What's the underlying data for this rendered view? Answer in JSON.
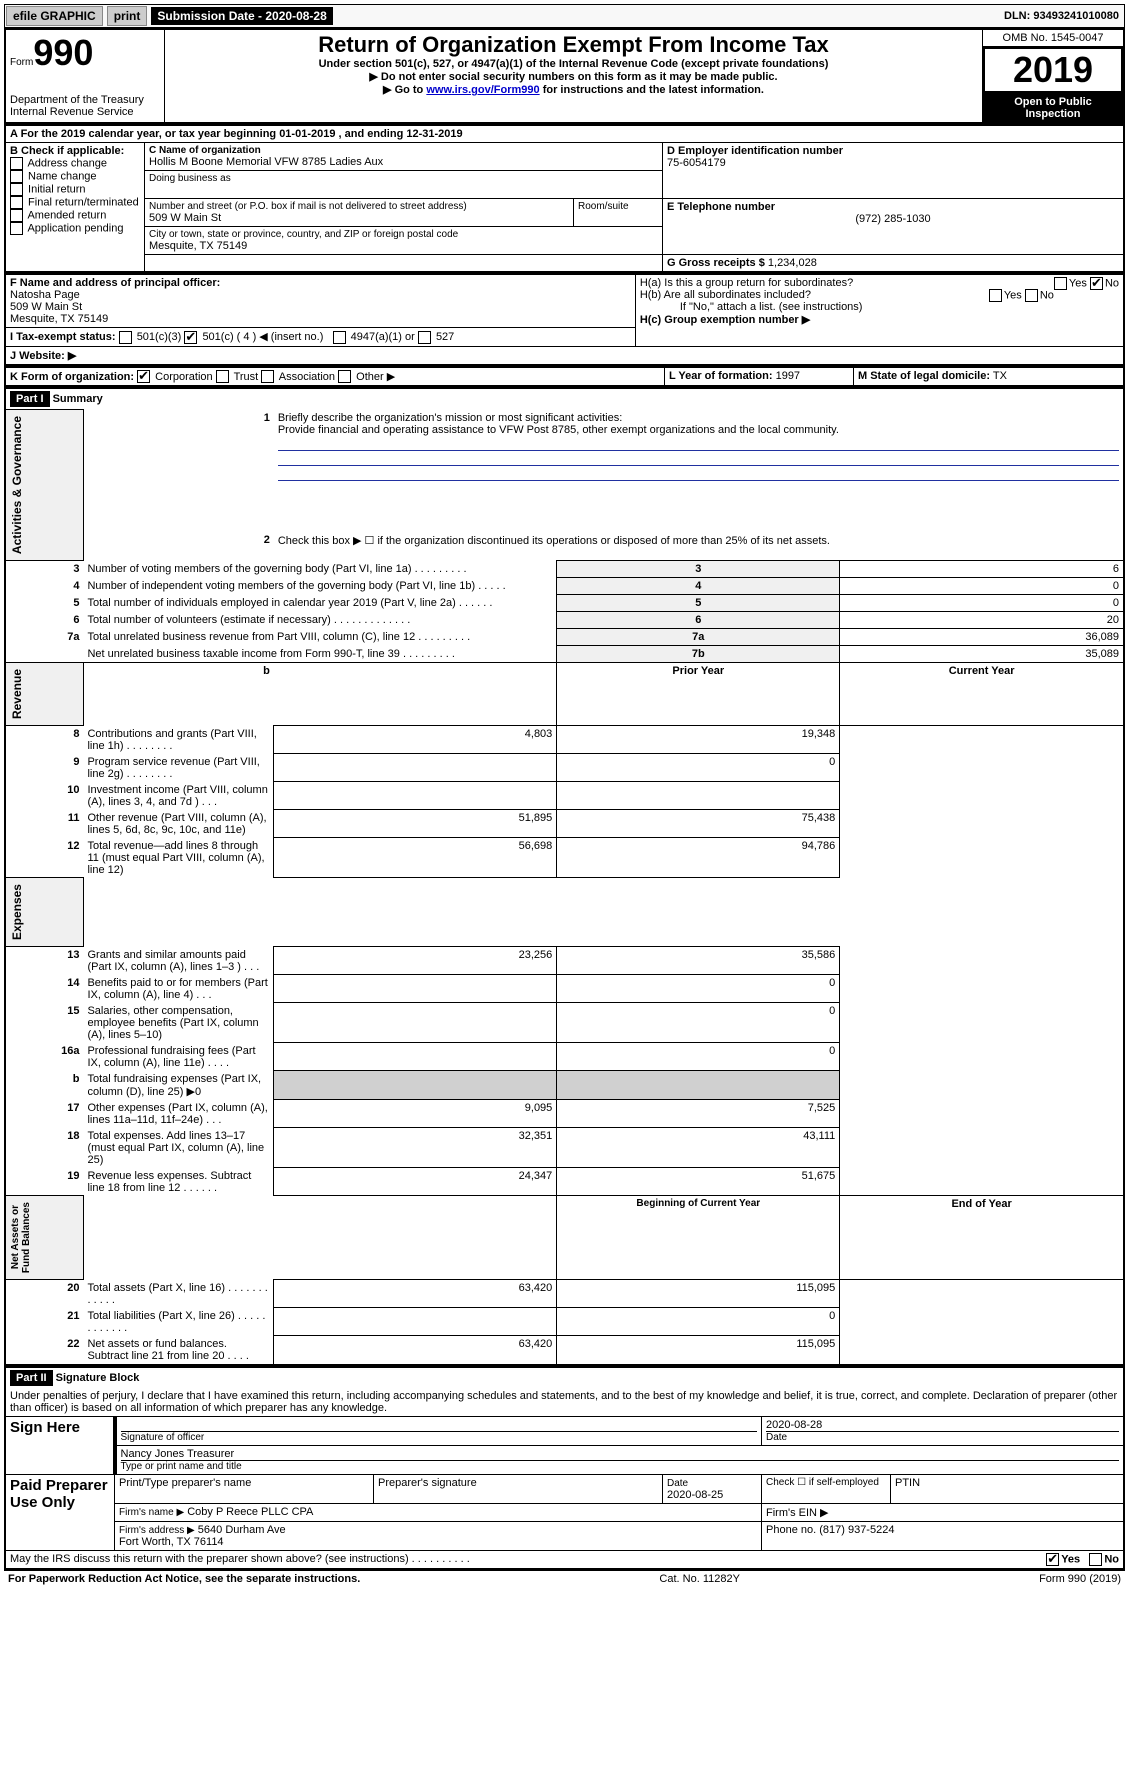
{
  "topbar": {
    "efile": "efile GRAPHIC",
    "print": "print",
    "submission_label": "Submission Date - 2020-08-28",
    "dln": "DLN: 93493241010080"
  },
  "header": {
    "form_prefix": "Form",
    "form_number": "990",
    "title": "Return of Organization Exempt From Income Tax",
    "subtitle1": "Under section 501(c), 527, or 4947(a)(1) of the Internal Revenue Code (except private foundations)",
    "subtitle2": "▶ Do not enter social security numbers on this form as it may be made public.",
    "subtitle3_a": "▶ Go to ",
    "subtitle3_link": "www.irs.gov/Form990",
    "subtitle3_b": " for instructions and the latest information.",
    "dept": "Department of the Treasury\nInternal Revenue Service",
    "omb": "OMB No. 1545-0047",
    "year": "2019",
    "open": "Open to Public Inspection"
  },
  "A": {
    "line": "A For the 2019 calendar year, or tax year beginning 01-01-2019    , and ending 12-31-2019"
  },
  "B": {
    "label": "B Check if applicable:",
    "opts": [
      "Address change",
      "Name change",
      "Initial return",
      "Final return/terminated",
      "Amended return",
      "Application pending"
    ]
  },
  "C": {
    "name_label": "C Name of organization",
    "name": "Hollis M Boone Memorial VFW 8785 Ladies Aux",
    "dba_label": "Doing business as",
    "addr_label": "Number and street (or P.O. box if mail is not delivered to street address)",
    "room_label": "Room/suite",
    "addr": "509 W Main St",
    "city_label": "City or town, state or province, country, and ZIP or foreign postal code",
    "city": "Mesquite, TX  75149"
  },
  "D": {
    "label": "D Employer identification number",
    "val": "75-6054179"
  },
  "E": {
    "label": "E Telephone number",
    "val": "(972) 285-1030"
  },
  "G": {
    "label": "G Gross receipts $",
    "val": "1,234,028"
  },
  "F": {
    "label": "F  Name and address of principal officer:",
    "name": "Natosha Page",
    "addr": "509 W Main St",
    "city": "Mesquite, TX  75149"
  },
  "H": {
    "a": "H(a)  Is this a group return for subordinates?",
    "b": "H(b)  Are all subordinates included?",
    "note": "If \"No,\" attach a list. (see instructions)",
    "c": "H(c)  Group exemption number ▶",
    "yes": "Yes",
    "no": "No"
  },
  "I": {
    "label": "I    Tax-exempt status:",
    "c4": "501(c) ( 4 ) ◀ (insert no.)",
    "c3": "501(c)(3)",
    "a1": "4947(a)(1) or",
    "527": "527"
  },
  "J": {
    "label": "J    Website: ▶"
  },
  "K": {
    "label": "K Form of organization:",
    "corp": "Corporation",
    "trust": "Trust",
    "assoc": "Association",
    "other": "Other ▶"
  },
  "L": {
    "label": "L Year of formation:",
    "val": "1997"
  },
  "M": {
    "label": "M State of legal domicile:",
    "val": "TX"
  },
  "partI": {
    "header": "Part I",
    "title": "Summary"
  },
  "summary": {
    "q1": "Briefly describe the organization's mission or most significant activities:",
    "mission": "Provide financial and operating assistance to VFW Post 8785, other exempt organizations and the local community.",
    "q2": "Check this box ▶ ☐  if the organization discontinued its operations or disposed of more than 25% of its net assets.",
    "lines": [
      {
        "n": "3",
        "d": "Number of voting members of the governing body (Part VI, line 1a)   .    .    .    .    .    .    .    .    .",
        "box": "3",
        "val": "6"
      },
      {
        "n": "4",
        "d": "Number of independent voting members of the governing body (Part VI, line 1b)   .    .    .    .    .",
        "box": "4",
        "val": "0"
      },
      {
        "n": "5",
        "d": "Total number of individuals employed in calendar year 2019 (Part V, line 2a)   .    .    .    .    .    .",
        "box": "5",
        "val": "0"
      },
      {
        "n": "6",
        "d": "Total number of volunteers (estimate if necessary)   .    .    .    .    .    .    .    .    .    .    .    .    .",
        "box": "6",
        "val": "20"
      },
      {
        "n": "7a",
        "d": "Total unrelated business revenue from Part VIII, column (C), line 12   .    .    .    .    .    .    .    .    .",
        "box": "7a",
        "val": "36,089"
      },
      {
        "n": "",
        "d": "Net unrelated business taxable income from Form 990-T, line 39   .    .    .    .    .    .    .    .    .",
        "box": "7b",
        "val": "35,089"
      }
    ],
    "headers": {
      "prior": "Prior Year",
      "current": "Current Year"
    },
    "revenue": [
      {
        "n": "8",
        "d": "Contributions and grants (Part VIII, line 1h)   .    .    .    .    .    .    .    .",
        "p": "4,803",
        "c": "19,348"
      },
      {
        "n": "9",
        "d": "Program service revenue (Part VIII, line 2g)   .    .    .    .    .    .    .    .",
        "p": "",
        "c": "0"
      },
      {
        "n": "10",
        "d": "Investment income (Part VIII, column (A), lines 3, 4, and 7d )   .    .    .",
        "p": "",
        "c": ""
      },
      {
        "n": "11",
        "d": "Other revenue (Part VIII, column (A), lines 5, 6d, 8c, 9c, 10c, and 11e)",
        "p": "51,895",
        "c": "75,438"
      },
      {
        "n": "12",
        "d": "Total revenue—add lines 8 through 11 (must equal Part VIII, column (A), line 12)",
        "p": "56,698",
        "c": "94,786"
      }
    ],
    "expenses": [
      {
        "n": "13",
        "d": "Grants and similar amounts paid (Part IX, column (A), lines 1–3 )   .    .    .",
        "p": "23,256",
        "c": "35,586"
      },
      {
        "n": "14",
        "d": "Benefits paid to or for members (Part IX, column (A), line 4)   .    .    .",
        "p": "",
        "c": "0"
      },
      {
        "n": "15",
        "d": "Salaries, other compensation, employee benefits (Part IX, column (A), lines 5–10)",
        "p": "",
        "c": "0"
      },
      {
        "n": "16a",
        "d": "Professional fundraising fees (Part IX, column (A), line 11e)   .    .    .    .",
        "p": "",
        "c": "0"
      },
      {
        "n": "b",
        "d": "Total fundraising expenses (Part IX, column (D), line 25) ▶0",
        "p": "shaded",
        "c": "shaded"
      },
      {
        "n": "17",
        "d": "Other expenses (Part IX, column (A), lines 11a–11d, 11f–24e)   .    .    .",
        "p": "9,095",
        "c": "7,525"
      },
      {
        "n": "18",
        "d": "Total expenses. Add lines 13–17 (must equal Part IX, column (A), line 25)",
        "p": "32,351",
        "c": "43,111"
      },
      {
        "n": "19",
        "d": "Revenue less expenses. Subtract line 18 from line 12   .    .    .    .    .    .",
        "p": "24,347",
        "c": "51,675"
      }
    ],
    "netheaders": {
      "begin": "Beginning of Current Year",
      "end": "End of Year"
    },
    "net": [
      {
        "n": "20",
        "d": "Total assets (Part X, line 16)   .    .    .    .    .    .    .    .    .    .    .    .",
        "p": "63,420",
        "c": "115,095"
      },
      {
        "n": "21",
        "d": "Total liabilities (Part X, line 26)   .    .    .    .    .    .    .    .    .    .    .    .",
        "p": "",
        "c": "0"
      },
      {
        "n": "22",
        "d": "Net assets or fund balances. Subtract line 21 from line 20   .    .    .    .",
        "p": "63,420",
        "c": "115,095"
      }
    ]
  },
  "vlabels": {
    "ag": "Activities & Governance",
    "rev": "Revenue",
    "exp": "Expenses",
    "net": "Net Assets or\nFund Balances"
  },
  "partII": {
    "header": "Part II",
    "title": "Signature Block",
    "decl": "Under penalties of perjury, I declare that I have examined this return, including accompanying schedules and statements, and to the best of my knowledge and belief, it is true, correct, and complete. Declaration of preparer (other than officer) is based on all information of which preparer has any knowledge."
  },
  "sign": {
    "here": "Sign Here",
    "sig_label": "Signature of officer",
    "date": "2020-08-28",
    "date_label": "Date",
    "name": "Nancy Jones  Treasurer",
    "name_label": "Type or print name and title"
  },
  "paid": {
    "label": "Paid Preparer Use Only",
    "col1": "Print/Type preparer's name",
    "col2": "Preparer's signature",
    "col3_label": "Date",
    "col3": "2020-08-25",
    "col4": "Check ☐  if self-employed",
    "col5": "PTIN",
    "firm_label": "Firm's name    ▶",
    "firm": "Coby P Reece PLLC CPA",
    "ein": "Firm's EIN ▶",
    "addr_label": "Firm's address ▶",
    "addr": "5640 Durham Ave\nFort Worth, TX  76114",
    "phone_label": "Phone no.",
    "phone": "(817) 937-5224"
  },
  "bottom": {
    "q": "May the IRS discuss this return with the preparer shown above? (see instructions)   .    .    .    .    .    .    .    .    .    .",
    "yes": "Yes",
    "no": "No",
    "notice": "For Paperwork Reduction Act Notice, see the separate instructions.",
    "cat": "Cat. No. 11282Y",
    "form": "Form 990 (2019)"
  }
}
